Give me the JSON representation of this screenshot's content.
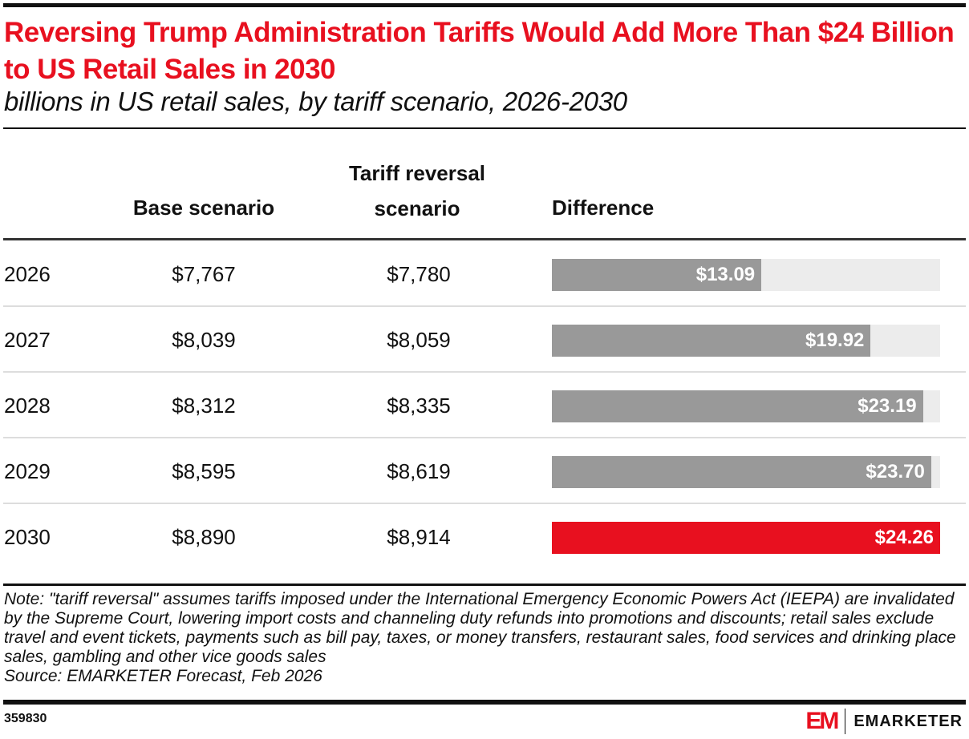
{
  "title": "Reversing Trump Administration Tariffs Would Add More Than $24 Billion to US Retail Sales in 2030",
  "subtitle": "billions in US retail sales, by tariff scenario, 2026-2030",
  "headers": {
    "base": "Base scenario",
    "reversal_line1": "Tariff reversal",
    "reversal_line2": "scenario",
    "difference": "Difference"
  },
  "chart_data": {
    "type": "table",
    "title": "Reversing Trump Administration Tariffs Would Add More Than $24 Billion to US Retail Sales in 2030",
    "subtitle": "billions in US retail sales, by tariff scenario, 2026-2030",
    "columns": [
      "",
      "Base scenario",
      "Tariff reversal scenario",
      "Difference"
    ],
    "categories": [
      "2026",
      "2027",
      "2028",
      "2029",
      "2030"
    ],
    "series": [
      {
        "name": "Base scenario",
        "values": [
          7767,
          8039,
          8312,
          8595,
          8890
        ]
      },
      {
        "name": "Tariff reversal scenario",
        "values": [
          7780,
          8059,
          8335,
          8619,
          8914
        ]
      },
      {
        "name": "Difference",
        "values": [
          13.09,
          19.92,
          23.19,
          23.7,
          24.26
        ]
      }
    ],
    "highlight": "2030",
    "bar_max": 24.26
  },
  "rows": [
    {
      "year": "2026",
      "base": "$7,767",
      "reversal": "$7,780",
      "diff": "$13.09",
      "value": 13.09,
      "highlight": false
    },
    {
      "year": "2027",
      "base": "$8,039",
      "reversal": "$8,059",
      "diff": "$19.92",
      "value": 19.92,
      "highlight": false
    },
    {
      "year": "2028",
      "base": "$8,312",
      "reversal": "$8,335",
      "diff": "$23.19",
      "value": 23.19,
      "highlight": false
    },
    {
      "year": "2029",
      "base": "$8,595",
      "reversal": "$8,619",
      "diff": "$23.70",
      "value": 23.7,
      "highlight": false
    },
    {
      "year": "2030",
      "base": "$8,890",
      "reversal": "$8,914",
      "diff": "$24.26",
      "value": 24.26,
      "highlight": true
    }
  ],
  "colors": {
    "accent": "#e8101f",
    "bar": "#999999",
    "track": "#ececec"
  },
  "note": "Note: \"tariff reversal\" assumes tariffs imposed under the International Emergency Economic Powers Act (IEEPA) are invalidated by the Supreme Court, lowering import costs and channeling duty refunds into promotions and discounts; retail sales exclude travel and event tickets, payments such as bill pay, taxes, or money transfers, restaurant sales, food services and drinking place sales, gambling and other vice goods sales",
  "source": "Source: EMARKETER Forecast, Feb 2026",
  "chart_id": "359830",
  "logo": {
    "mark": "EM",
    "word": "EMARKETER"
  }
}
